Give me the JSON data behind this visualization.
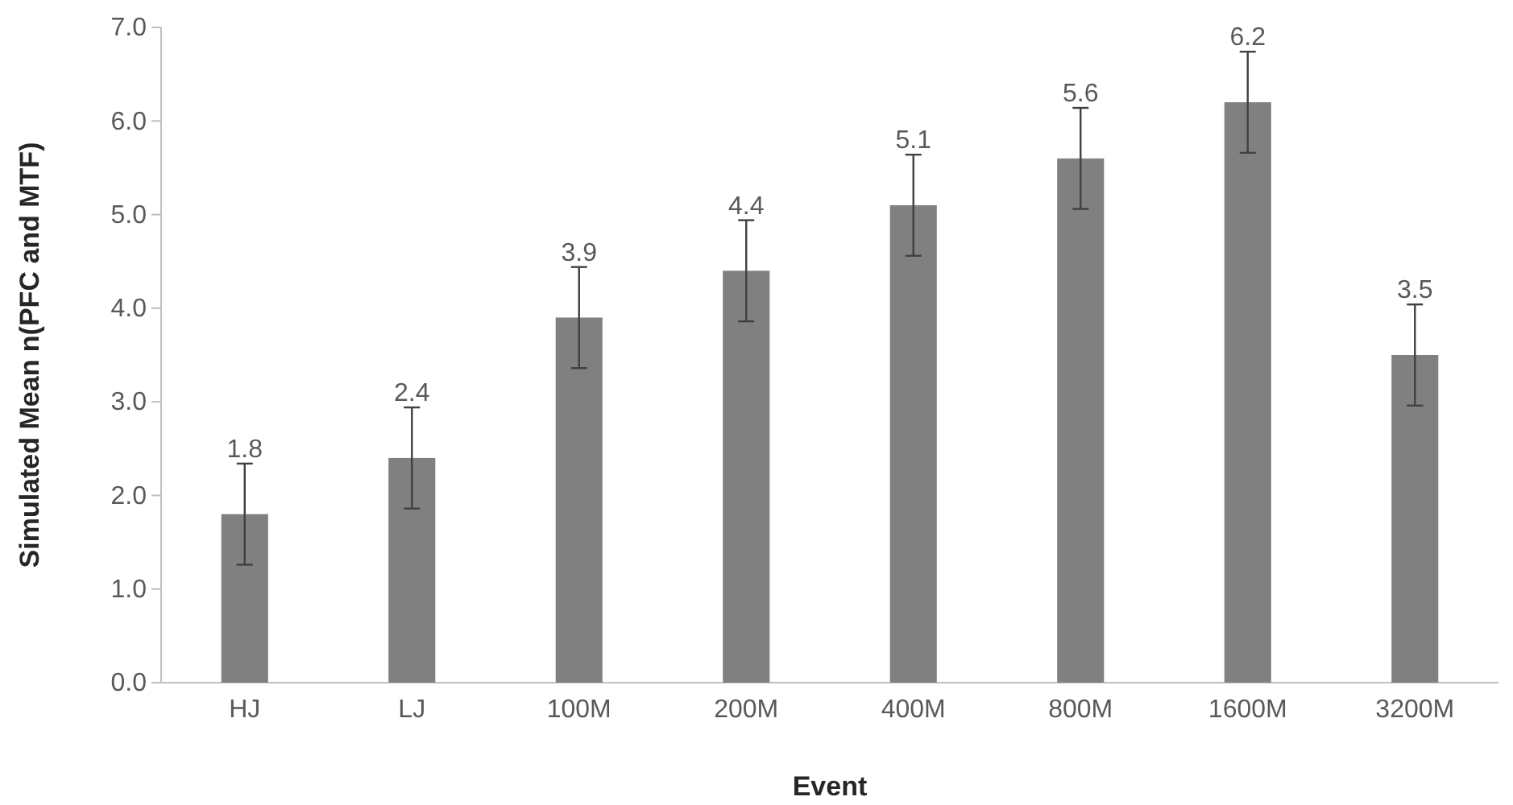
{
  "chart_data": {
    "type": "bar",
    "xlabel": "Event",
    "ylabel": "Simulated Mean n(PFC and MTF)",
    "categories": [
      "HJ",
      "LJ",
      "100M",
      "200M",
      "400M",
      "800M",
      "1600M",
      "3200M"
    ],
    "values": [
      1.8,
      2.4,
      3.9,
      4.4,
      5.1,
      5.6,
      6.2,
      3.5
    ],
    "errors": [
      0.54,
      0.54,
      0.54,
      0.54,
      0.54,
      0.54,
      0.54,
      0.54
    ],
    "color": "#808080",
    "ylim": [
      0,
      7
    ],
    "yticks": [
      {
        "value": 0,
        "label": "0.0"
      },
      {
        "value": 1,
        "label": "1.0"
      },
      {
        "value": 2,
        "label": "2.0"
      },
      {
        "value": 3,
        "label": "3.0"
      },
      {
        "value": 4,
        "label": "4.0"
      },
      {
        "value": 5,
        "label": "5.0"
      },
      {
        "value": 6,
        "label": "6.0"
      },
      {
        "value": 7,
        "label": "7.0"
      }
    ],
    "data_labels": true,
    "grid": false
  }
}
